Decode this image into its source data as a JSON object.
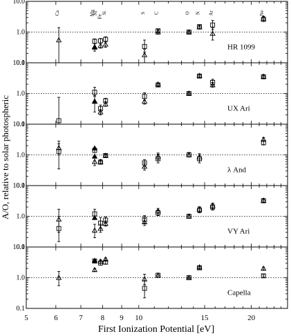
{
  "chart_data": {
    "type": "scatter",
    "xlabel": "First Ionization Potential [eV]",
    "ylabel": "A/O, relative to solar photospheric",
    "x_ticks": [
      5,
      6,
      7,
      8,
      9,
      10,
      15,
      20
    ],
    "x_scale": "log",
    "xlim": [
      5,
      25
    ],
    "y_scale": "log",
    "ylim": [
      0.1,
      10.0
    ],
    "y_tick_labels": [
      "10.0",
      "1.0",
      "0.1"
    ],
    "reference_line": 1.0,
    "element_labels": [
      {
        "el": "Ca",
        "fip": 6.11
      },
      {
        "el": "Mg",
        "fip": 7.65
      },
      {
        "el": "Ni",
        "fip": 7.64
      },
      {
        "el": "Fe",
        "fip": 7.9
      },
      {
        "el": "Si",
        "fip": 8.15
      },
      {
        "el": "S",
        "fip": 10.36
      },
      {
        "el": "C",
        "fip": 11.26
      },
      {
        "el": "O",
        "fip": 13.62
      },
      {
        "el": "N",
        "fip": 14.53
      },
      {
        "el": "Ar",
        "fip": 15.76
      },
      {
        "el": "Ne",
        "fip": 21.56
      }
    ],
    "panels": [
      {
        "star": "HR 1099",
        "squares": [
          {
            "x": 7.62,
            "y": 0.5,
            "lo": 0.42,
            "hi": 0.6
          },
          {
            "x": 7.9,
            "y": 0.52,
            "lo": 0.44,
            "hi": 0.62
          },
          {
            "x": 8.15,
            "y": 0.58,
            "lo": 0.48,
            "hi": 0.7
          },
          {
            "x": 10.36,
            "y": 0.34,
            "lo": 0.22,
            "hi": 0.55
          },
          {
            "x": 11.26,
            "y": 1.1,
            "lo": 0.95,
            "hi": 1.25
          },
          {
            "x": 13.62,
            "y": 1.0,
            "lo": 0.92,
            "hi": 1.08
          },
          {
            "x": 14.53,
            "y": 1.5,
            "lo": 1.3,
            "hi": 1.7
          },
          {
            "x": 15.76,
            "y": 1.7,
            "lo": 1.2,
            "hi": 2.4
          },
          {
            "x": 21.56,
            "y": 2.6,
            "lo": 2.2,
            "hi": 3.1
          }
        ],
        "triangles": [
          {
            "x": 6.11,
            "y": 0.55,
            "lo": 0.1,
            "hi": 1.4
          },
          {
            "x": 7.62,
            "y": 0.32,
            "lo": 0.24,
            "hi": 0.42
          },
          {
            "x": 7.9,
            "y": 0.36,
            "lo": 0.3,
            "hi": 0.44
          },
          {
            "x": 8.15,
            "y": 0.4,
            "lo": 0.32,
            "hi": 0.5
          },
          {
            "x": 10.36,
            "y": 0.18,
            "lo": 0.1,
            "hi": 0.28
          },
          {
            "x": 11.26,
            "y": 1.0,
            "lo": 0.85,
            "hi": 1.18
          },
          {
            "x": 13.62,
            "y": 1.0,
            "lo": 0.92,
            "hi": 1.08
          },
          {
            "x": 14.53,
            "y": 1.45,
            "lo": 1.25,
            "hi": 1.65
          },
          {
            "x": 15.76,
            "y": 0.9,
            "lo": 0.55,
            "hi": 1.4
          },
          {
            "x": 21.56,
            "y": 2.8,
            "lo": 2.4,
            "hi": 3.3
          }
        ],
        "filled_triangles": [
          {
            "x": 7.62,
            "y": 0.33
          }
        ]
      },
      {
        "star": "UX Ari",
        "squares": [
          {
            "x": 6.11,
            "y": 0.13,
            "lo": 0.1,
            "hi": 0.75
          },
          {
            "x": 7.62,
            "y": 1.1,
            "lo": 0.85,
            "hi": 1.6
          },
          {
            "x": 7.9,
            "y": 0.32,
            "lo": 0.25,
            "hi": 0.42
          },
          {
            "x": 8.15,
            "y": 0.58,
            "lo": 0.48,
            "hi": 0.7
          },
          {
            "x": 10.36,
            "y": 0.8,
            "lo": 0.6,
            "hi": 1.05
          },
          {
            "x": 11.26,
            "y": 1.9,
            "lo": 1.7,
            "hi": 2.1
          },
          {
            "x": 13.62,
            "y": 1.0,
            "lo": 0.92,
            "hi": 1.08
          },
          {
            "x": 14.53,
            "y": 3.7,
            "lo": 3.3,
            "hi": 4.1
          },
          {
            "x": 15.76,
            "y": 2.3,
            "lo": 1.8,
            "hi": 2.9
          },
          {
            "x": 21.56,
            "y": 3.5,
            "lo": 3.1,
            "hi": 3.9
          }
        ],
        "triangles": [
          {
            "x": 7.62,
            "y": 0.55,
            "lo": 0.25,
            "hi": 0.8
          },
          {
            "x": 7.9,
            "y": 0.25,
            "lo": 0.2,
            "hi": 0.3
          },
          {
            "x": 8.15,
            "y": 0.45,
            "lo": 0.38,
            "hi": 0.54
          },
          {
            "x": 10.36,
            "y": 0.55,
            "lo": 0.45,
            "hi": 0.68
          },
          {
            "x": 11.26,
            "y": 2.0,
            "lo": 1.8,
            "hi": 2.2
          },
          {
            "x": 13.62,
            "y": 1.0,
            "lo": 0.92,
            "hi": 1.08
          },
          {
            "x": 14.53,
            "y": 3.8,
            "lo": 3.4,
            "hi": 4.2
          },
          {
            "x": 15.76,
            "y": 1.9,
            "lo": 1.6,
            "hi": 2.3
          },
          {
            "x": 21.56,
            "y": 3.6,
            "lo": 3.2,
            "hi": 4.0
          }
        ],
        "filled_triangles": [
          {
            "x": 7.62,
            "y": 0.56
          }
        ]
      },
      {
        "star": "λ And",
        "squares": [
          {
            "x": 6.11,
            "y": 1.3,
            "lo": 0.35,
            "hi": 2.3
          },
          {
            "x": 7.62,
            "y": 1.4,
            "lo": 1.2,
            "hi": 1.7
          },
          {
            "x": 7.9,
            "y": 0.58,
            "lo": 0.5,
            "hi": 0.66
          },
          {
            "x": 8.15,
            "y": 0.95,
            "lo": 0.85,
            "hi": 1.05
          },
          {
            "x": 10.36,
            "y": 0.55,
            "lo": 0.42,
            "hi": 0.7
          },
          {
            "x": 11.26,
            "y": 0.75,
            "lo": 0.55,
            "hi": 1.05
          },
          {
            "x": 13.62,
            "y": 1.0,
            "lo": 0.85,
            "hi": 1.2
          },
          {
            "x": 14.53,
            "y": 0.75,
            "lo": 0.55,
            "hi": 1.0
          },
          {
            "x": 21.56,
            "y": 2.5,
            "lo": 2.1,
            "hi": 2.9
          }
        ],
        "triangles": [
          {
            "x": 6.11,
            "y": 1.7,
            "lo": 1.0,
            "hi": 2.8
          },
          {
            "x": 7.62,
            "y": 0.6,
            "lo": 0.45,
            "hi": 0.8
          },
          {
            "x": 7.9,
            "y": 0.6,
            "lo": 0.5,
            "hi": 0.7
          },
          {
            "x": 8.15,
            "y": 0.95,
            "lo": 0.85,
            "hi": 1.05
          },
          {
            "x": 10.36,
            "y": 0.42,
            "lo": 0.32,
            "hi": 0.55
          },
          {
            "x": 11.26,
            "y": 0.9,
            "lo": 0.7,
            "hi": 1.15
          },
          {
            "x": 13.62,
            "y": 1.0,
            "lo": 0.85,
            "hi": 1.2
          },
          {
            "x": 14.53,
            "y": 0.85,
            "lo": 0.65,
            "hi": 1.1
          },
          {
            "x": 21.56,
            "y": 3.2,
            "lo": 2.8,
            "hi": 3.7
          }
        ],
        "filled_triangles": [
          {
            "x": 7.62,
            "y": 1.65
          },
          {
            "x": 7.62,
            "y": 0.9
          }
        ]
      },
      {
        "star": "VY Ari",
        "squares": [
          {
            "x": 6.11,
            "y": 0.4,
            "lo": 0.15,
            "hi": 1.0
          },
          {
            "x": 7.62,
            "y": 1.2,
            "lo": 0.8,
            "hi": 1.7
          },
          {
            "x": 7.9,
            "y": 0.6,
            "lo": 0.4,
            "hi": 0.9
          },
          {
            "x": 8.15,
            "y": 0.75,
            "lo": 0.6,
            "hi": 0.95
          },
          {
            "x": 10.36,
            "y": 0.8,
            "lo": 0.6,
            "hi": 1.05
          },
          {
            "x": 11.26,
            "y": 1.3,
            "lo": 1.05,
            "hi": 1.6
          },
          {
            "x": 13.62,
            "y": 1.0,
            "lo": 0.88,
            "hi": 1.14
          },
          {
            "x": 14.53,
            "y": 1.6,
            "lo": 1.3,
            "hi": 1.95
          },
          {
            "x": 15.76,
            "y": 2.0,
            "lo": 1.6,
            "hi": 2.5
          },
          {
            "x": 21.56,
            "y": 3.2,
            "lo": 2.8,
            "hi": 3.7
          }
        ],
        "triangles": [
          {
            "x": 6.11,
            "y": 0.8,
            "lo": 0.3,
            "hi": 1.7
          },
          {
            "x": 7.62,
            "y": 0.35,
            "lo": 0.2,
            "hi": 0.55
          },
          {
            "x": 7.9,
            "y": 0.4,
            "lo": 0.3,
            "hi": 0.55
          },
          {
            "x": 8.15,
            "y": 0.58,
            "lo": 0.48,
            "hi": 0.7
          },
          {
            "x": 10.36,
            "y": 0.65,
            "lo": 0.5,
            "hi": 0.85
          },
          {
            "x": 11.26,
            "y": 1.5,
            "lo": 1.25,
            "hi": 1.8
          },
          {
            "x": 13.62,
            "y": 1.0,
            "lo": 0.88,
            "hi": 1.14
          },
          {
            "x": 14.53,
            "y": 1.7,
            "lo": 1.4,
            "hi": 2.05
          },
          {
            "x": 15.76,
            "y": 2.2,
            "lo": 1.8,
            "hi": 2.7
          },
          {
            "x": 21.56,
            "y": 3.3,
            "lo": 2.9,
            "hi": 3.8
          }
        ],
        "filled_triangles": [
          {
            "x": 7.62,
            "y": 0.9
          }
        ]
      },
      {
        "star": "Capella",
        "squares": [
          {
            "x": 7.62,
            "y": 3.5,
            "lo": 3.1,
            "hi": 3.9
          },
          {
            "x": 7.9,
            "y": 3.0,
            "lo": 2.6,
            "hi": 3.4
          },
          {
            "x": 8.15,
            "y": 3.2,
            "lo": 2.8,
            "hi": 3.6
          },
          {
            "x": 10.36,
            "y": 0.45,
            "lo": 0.22,
            "hi": 0.8
          },
          {
            "x": 11.26,
            "y": 1.2,
            "lo": 1.05,
            "hi": 1.4
          },
          {
            "x": 13.62,
            "y": 1.0,
            "lo": 0.94,
            "hi": 1.06
          },
          {
            "x": 14.53,
            "y": 2.1,
            "lo": 1.9,
            "hi": 2.35
          },
          {
            "x": 21.56,
            "y": 1.15,
            "lo": 1.05,
            "hi": 1.25
          }
        ],
        "triangles": [
          {
            "x": 6.11,
            "y": 1.0,
            "lo": 0.55,
            "hi": 1.6
          },
          {
            "x": 7.62,
            "y": 1.8,
            "lo": 1.6,
            "hi": 2.0
          },
          {
            "x": 7.9,
            "y": 3.4,
            "lo": 3.0,
            "hi": 3.8
          },
          {
            "x": 8.15,
            "y": 4.0,
            "lo": 3.6,
            "hi": 4.4
          },
          {
            "x": 10.36,
            "y": 0.9,
            "lo": 0.6,
            "hi": 1.3
          },
          {
            "x": 11.26,
            "y": 1.2,
            "lo": 1.05,
            "hi": 1.4
          },
          {
            "x": 13.62,
            "y": 1.0,
            "lo": 0.94,
            "hi": 1.06
          },
          {
            "x": 14.53,
            "y": 2.2,
            "lo": 2.0,
            "hi": 2.45
          },
          {
            "x": 21.56,
            "y": 2.0,
            "lo": 1.8,
            "hi": 2.2
          }
        ],
        "filled_triangles": [
          {
            "x": 7.62,
            "y": 3.6
          }
        ]
      }
    ]
  }
}
